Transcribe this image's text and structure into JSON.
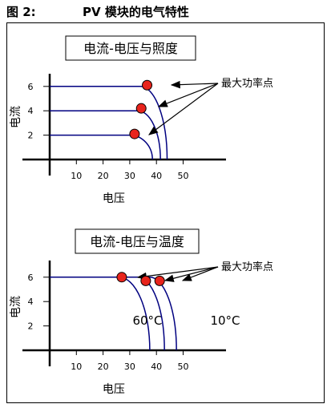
{
  "figure": {
    "number": "图 2:",
    "title": "PV 模块的电气特性"
  },
  "chart_data": [
    {
      "type": "line",
      "title": "电流-电压与照度",
      "xlabel": "电压",
      "ylabel": "电流",
      "x_ticks": [
        "10",
        "20",
        "30",
        "40",
        "50"
      ],
      "y_ticks": [
        "2",
        "4",
        "6"
      ],
      "xlim": [
        0,
        50
      ],
      "ylim": [
        0,
        7
      ],
      "series": [
        {
          "isc": 6,
          "voc": 44,
          "knee": 34
        },
        {
          "isc": 4,
          "voc": 41.5,
          "knee": 33
        },
        {
          "isc": 2,
          "voc": 38.5,
          "knee": 30
        }
      ],
      "mpp": [
        {
          "x": 36.5,
          "y": 6.1
        },
        {
          "x": 34.3,
          "y": 4.2
        },
        {
          "x": 31.8,
          "y": 2.1
        }
      ],
      "annotation": "最大功率点"
    },
    {
      "type": "line",
      "title": "电流-电压与温度",
      "xlabel": "电压",
      "ylabel": "电流",
      "x_ticks": [
        "10",
        "20",
        "30",
        "40",
        "50"
      ],
      "y_ticks": [
        "2",
        "4",
        "6"
      ],
      "xlim": [
        0,
        50
      ],
      "ylim": [
        0,
        7
      ],
      "series": [
        {
          "name": "60°C",
          "isc": 6,
          "voc": 37.5,
          "knee": 26
        },
        {
          "isc": 6,
          "voc": 43,
          "knee": 33
        },
        {
          "name": "10°C",
          "isc": 6,
          "voc": 47.5,
          "knee": 37.5
        }
      ],
      "mpp": [
        {
          "x": 27,
          "y": 6
        },
        {
          "x": 36,
          "y": 5.7
        },
        {
          "x": 41.2,
          "y": 5.7
        }
      ],
      "annotation": "最大功率点"
    }
  ],
  "colors": {
    "curve": "#000080",
    "marker": "#e8241c",
    "axis": "#000000"
  }
}
